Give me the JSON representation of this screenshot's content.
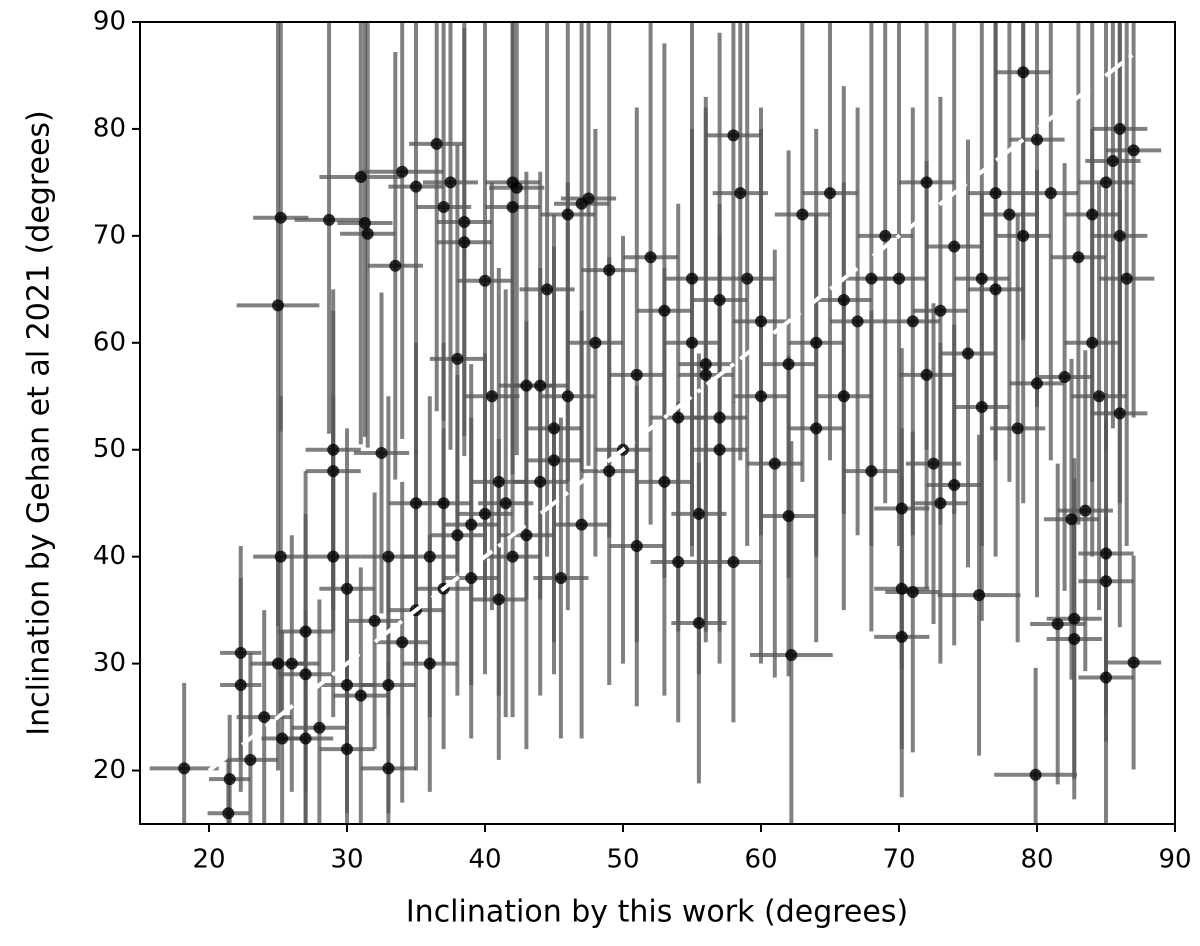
{
  "chart_data": {
    "type": "errorbar_scatter",
    "xlabel": "Inclination by this work (degrees)",
    "ylabel": "Inclination by Gehan et al 2021 (degrees)",
    "xlim": [
      15,
      90
    ],
    "ylim": [
      15,
      90
    ],
    "xticks": [
      20,
      30,
      40,
      50,
      60,
      70,
      80,
      90
    ],
    "yticks": [
      20,
      30,
      40,
      50,
      60,
      70,
      80,
      90
    ],
    "color": "#000000",
    "errorbar_color": "#555555",
    "reference_line": {
      "x": [
        20,
        88
      ],
      "y": [
        20,
        88
      ],
      "color": "#ffffff",
      "style": "dashdot"
    },
    "x": [
      18.2,
      21.4,
      21.5,
      22.3,
      22.3,
      25,
      25.2,
      25.2,
      25,
      25.3,
      27,
      27,
      28.7,
      29,
      29,
      30,
      30,
      30,
      31,
      31.3,
      31.5,
      32.5,
      33,
      33,
      33.5,
      34,
      35,
      36.5,
      37,
      37.5,
      38.5,
      38.5,
      35,
      36,
      37,
      38,
      39,
      40,
      40.5,
      41,
      41.5,
      42,
      42.3,
      42,
      43,
      44,
      44.5,
      45,
      45,
      45.5,
      46,
      47,
      47.5,
      48,
      49,
      50,
      51,
      52,
      53,
      54,
      55,
      55.5,
      55.5,
      56,
      57,
      57,
      58,
      58.5,
      58,
      59,
      60,
      61,
      62,
      62.2,
      63,
      64,
      65,
      66,
      67,
      68,
      69,
      70,
      70.2,
      70.2,
      70.2,
      71,
      72,
      72.5,
      73,
      74,
      75,
      76,
      75.8,
      77,
      78,
      78.6,
      79,
      80,
      79.9,
      81.5,
      82,
      82.5,
      82.7,
      82.7,
      83.5,
      84,
      84.5,
      85,
      85,
      85,
      86,
      87,
      84,
      85,
      86,
      86.5,
      87,
      86,
      85.5,
      83,
      81,
      80,
      79,
      77,
      76,
      74,
      73,
      72,
      71,
      68,
      66,
      64,
      62,
      60,
      57,
      56,
      55,
      54,
      53,
      51,
      49,
      47,
      46,
      44,
      43,
      42,
      41,
      40,
      39,
      38,
      37,
      36,
      35,
      34,
      33,
      32,
      31,
      29,
      28,
      27,
      26,
      24,
      23
    ],
    "y": [
      20.2,
      16,
      19.2,
      31,
      28,
      63.5,
      71.7,
      40,
      30,
      23,
      29,
      33,
      71.5,
      50,
      48,
      37,
      28,
      22,
      75.5,
      71.2,
      70.2,
      49.7,
      40,
      20.2,
      67.2,
      76,
      74.6,
      78.6,
      72.7,
      75,
      71.3,
      69.4,
      35,
      30,
      45,
      58.5,
      43,
      65.8,
      55,
      47,
      45,
      75,
      74.5,
      72.7,
      56,
      56,
      65,
      52,
      49,
      38,
      72,
      73,
      73.5,
      60,
      66.8,
      50,
      41,
      68,
      63,
      39.5,
      66,
      44,
      33.8,
      58,
      53,
      50,
      79.4,
      74,
      39.5,
      66,
      55,
      48.7,
      43.8,
      30.8,
      72,
      60,
      74,
      55,
      62,
      48,
      70,
      66,
      44.5,
      37,
      32.5,
      36.7,
      57,
      48.7,
      45,
      46.7,
      59,
      54,
      36.4,
      65,
      72,
      52,
      85.3,
      56.2,
      19.6,
      33.7,
      56.8,
      43.5,
      34.2,
      32.3,
      44.3,
      60,
      55,
      40.3,
      37.7,
      28.7,
      53.4,
      30.1,
      72,
      75,
      70,
      66,
      78,
      80,
      77,
      68,
      74,
      79,
      70,
      74,
      66,
      69,
      63,
      75,
      62,
      66,
      64,
      52,
      58,
      62,
      64,
      57,
      60,
      53,
      47,
      57,
      48,
      43,
      55,
      47,
      42,
      40,
      36,
      44,
      38,
      42,
      37,
      40,
      45,
      32,
      28,
      34,
      27,
      40,
      24,
      23,
      30,
      25,
      21
    ],
    "xerr": [
      2.5,
      1.5,
      1.5,
      1.5,
      1.5,
      3,
      2,
      2,
      2,
      1.5,
      2,
      2,
      2.5,
      2,
      2,
      2,
      2,
      2,
      3,
      2,
      2,
      2,
      2,
      2,
      2,
      3,
      2,
      2,
      2,
      2,
      2,
      2,
      2,
      2,
      2,
      2,
      2,
      2,
      2,
      2,
      2,
      2,
      2,
      2,
      2,
      2,
      2,
      2,
      2,
      2,
      2,
      2,
      2,
      2,
      2,
      2,
      2,
      2,
      2,
      2,
      2,
      2,
      2,
      2,
      2,
      2,
      2,
      2,
      2,
      2,
      2,
      2,
      2,
      3,
      2,
      2,
      2,
      2,
      2,
      2,
      2,
      2,
      2,
      2,
      2,
      2,
      2,
      2,
      2,
      2,
      2,
      2,
      3,
      2,
      2,
      2,
      2,
      2,
      3,
      2,
      2,
      2,
      2,
      2,
      2,
      2,
      2,
      2,
      2,
      2,
      2,
      2,
      2,
      2,
      2,
      2,
      2,
      2,
      2,
      2,
      2,
      2,
      2,
      2,
      2,
      2,
      2,
      2,
      2,
      2,
      2,
      2,
      2,
      2,
      2,
      2,
      2,
      2,
      2,
      2,
      2,
      2,
      2,
      2,
      2,
      2,
      2,
      2,
      2,
      2,
      2,
      2,
      2,
      2,
      2,
      2,
      2,
      2,
      2,
      2,
      2,
      2,
      2
    ],
    "yerr": [
      8,
      5,
      6,
      10,
      10,
      30,
      20,
      15,
      10,
      10,
      15,
      15,
      20,
      15,
      15,
      15,
      12,
      12,
      25,
      20,
      20,
      15,
      15,
      10,
      20,
      25,
      25,
      25,
      20,
      25,
      20,
      20,
      15,
      12,
      15,
      20,
      15,
      30,
      20,
      20,
      20,
      25,
      25,
      25,
      20,
      20,
      25,
      20,
      20,
      15,
      25,
      25,
      25,
      20,
      25,
      20,
      15,
      25,
      25,
      15,
      25,
      15,
      15,
      25,
      20,
      20,
      25,
      25,
      15,
      25,
      25,
      20,
      15,
      20,
      25,
      20,
      25,
      20,
      20,
      15,
      25,
      25,
      15,
      15,
      15,
      15,
      20,
      15,
      15,
      15,
      20,
      20,
      15,
      25,
      25,
      20,
      25,
      20,
      10,
      15,
      20,
      15,
      15,
      15,
      15,
      20,
      20,
      15,
      15,
      15,
      20,
      10,
      25,
      25,
      25,
      25,
      25,
      25,
      25,
      25,
      25,
      25,
      25,
      25,
      25,
      25,
      20,
      25,
      20,
      25,
      20,
      20,
      20,
      20,
      25,
      25,
      20,
      20,
      20,
      25,
      20,
      20,
      20,
      20,
      20,
      15,
      15,
      15,
      15,
      15,
      15,
      15,
      15,
      15,
      12,
      12,
      12,
      15,
      12,
      12,
      12,
      10,
      10
    ]
  }
}
